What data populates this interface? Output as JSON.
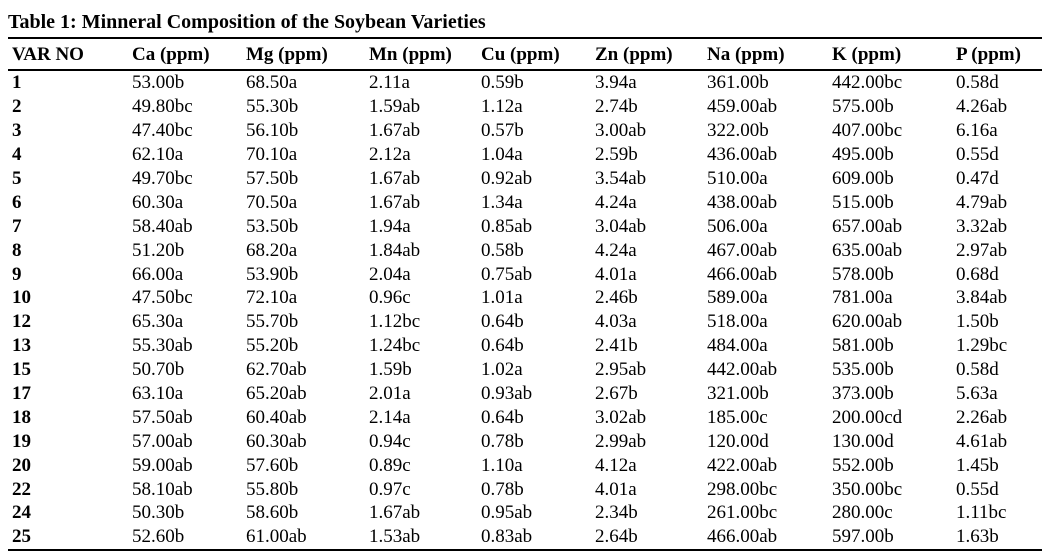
{
  "caption": "Table 1: Minneral Composition of the Soybean Varieties",
  "headers": [
    "VAR NO",
    "Ca (ppm)",
    "Mg (ppm)",
    "Mn (ppm)",
    "Cu (ppm)",
    "Zn (ppm)",
    "Na (ppm)",
    "K (ppm)",
    "P (ppm)"
  ],
  "rows": [
    [
      "1",
      "53.00b",
      "68.50a",
      "2.11a",
      "0.59b",
      "3.94a",
      "361.00b",
      "442.00bc",
      "0.58d"
    ],
    [
      "2",
      "49.80bc",
      "55.30b",
      "1.59ab",
      "1.12a",
      "2.74b",
      "459.00ab",
      "575.00b",
      "4.26ab"
    ],
    [
      "3",
      "47.40bc",
      "56.10b",
      "1.67ab",
      "0.57b",
      "3.00ab",
      "322.00b",
      "407.00bc",
      "6.16a"
    ],
    [
      "4",
      "62.10a",
      "70.10a",
      "2.12a",
      "1.04a",
      "2.59b",
      "436.00ab",
      "495.00b",
      "0.55d"
    ],
    [
      "5",
      "49.70bc",
      "57.50b",
      "1.67ab",
      "0.92ab",
      "3.54ab",
      "510.00a",
      "609.00b",
      "0.47d"
    ],
    [
      "6",
      "60.30a",
      "70.50a",
      "1.67ab",
      "1.34a",
      "4.24a",
      "438.00ab",
      "515.00b",
      "4.79ab"
    ],
    [
      "7",
      "58.40ab",
      "53.50b",
      "1.94a",
      "0.85ab",
      "3.04ab",
      "506.00a",
      "657.00ab",
      "3.32ab"
    ],
    [
      "8",
      "51.20b",
      "68.20a",
      "1.84ab",
      "0.58b",
      "4.24a",
      "467.00ab",
      "635.00ab",
      "2.97ab"
    ],
    [
      "9",
      "66.00a",
      "53.90b",
      "2.04a",
      "0.75ab",
      "4.01a",
      "466.00ab",
      "578.00b",
      "0.68d"
    ],
    [
      "10",
      "47.50bc",
      "72.10a",
      "0.96c",
      "1.01a",
      "2.46b",
      "589.00a",
      "781.00a",
      "3.84ab"
    ],
    [
      "12",
      "65.30a",
      "55.70b",
      "1.12bc",
      "0.64b",
      "4.03a",
      "518.00a",
      "620.00ab",
      "1.50b"
    ],
    [
      "13",
      "55.30ab",
      "55.20b",
      "1.24bc",
      "0.64b",
      "2.41b",
      "484.00a",
      "581.00b",
      "1.29bc"
    ],
    [
      "15",
      "50.70b",
      "62.70ab",
      "1.59b",
      "1.02a",
      "2.95ab",
      "442.00ab",
      "535.00b",
      "0.58d"
    ],
    [
      "17",
      "63.10a",
      "65.20ab",
      "2.01a",
      "0.93ab",
      "2.67b",
      "321.00b",
      "373.00b",
      "5.63a"
    ],
    [
      "18",
      "57.50ab",
      "60.40ab",
      "2.14a",
      "0.64b",
      "3.02ab",
      "185.00c",
      "200.00cd",
      "2.26ab"
    ],
    [
      "19",
      "57.00ab",
      "60.30ab",
      "0.94c",
      "0.78b",
      "2.99ab",
      "120.00d",
      "130.00d",
      "4.61ab"
    ],
    [
      "20",
      "59.00ab",
      "57.60b",
      "0.89c",
      "1.10a",
      "4.12a",
      "422.00ab",
      "552.00b",
      "1.45b"
    ],
    [
      "22",
      "58.10ab",
      "55.80b",
      "0.97c",
      "0.78b",
      "4.01a",
      "298.00bc",
      "350.00bc",
      "0.55d"
    ],
    [
      "24",
      "50.30b",
      "58.60b",
      "1.67ab",
      "0.95ab",
      "2.34b",
      "261.00bc",
      "280.00c",
      "1.11bc"
    ],
    [
      "25",
      "52.60b",
      "61.00ab",
      "1.53ab",
      "0.83ab",
      "2.64b",
      "466.00ab",
      "597.00b",
      "1.63b"
    ]
  ]
}
